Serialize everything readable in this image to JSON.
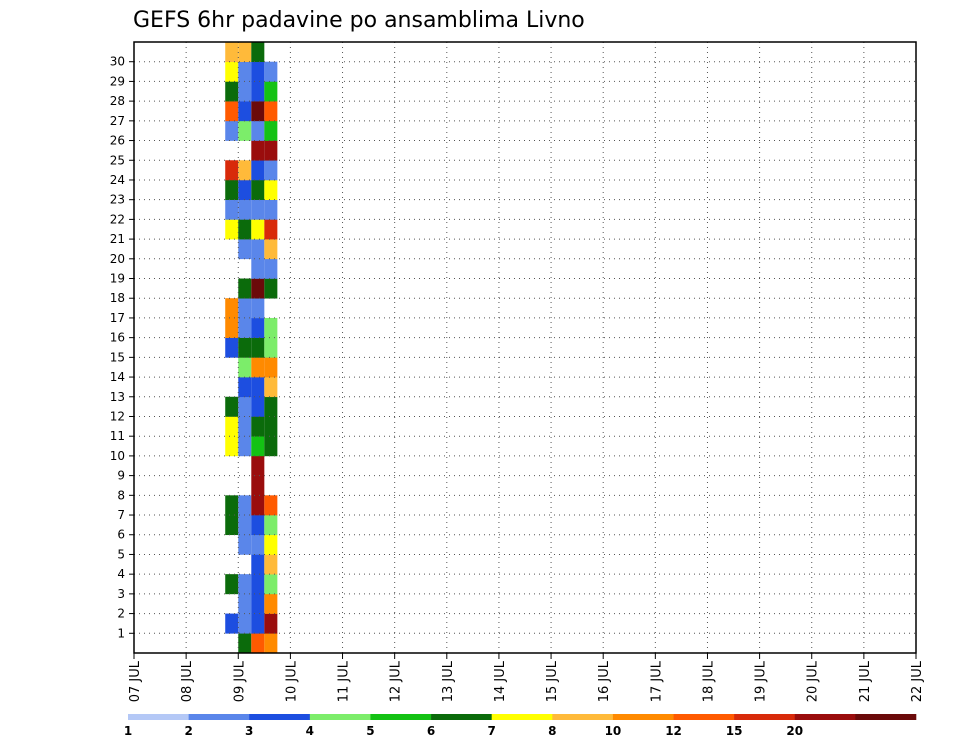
{
  "chart_data": {
    "type": "heatmap",
    "title": "GEFS 6hr padavine po ansamblima Livno",
    "xlabel": "",
    "ylabel": "",
    "x_ticks": [
      "07 JUL",
      "08 JUL",
      "09 JUL",
      "10 JUL",
      "11 JUL",
      "12 JUL",
      "13 JUL",
      "14 JUL",
      "15 JUL",
      "16 JUL",
      "17 JUL",
      "18 JUL",
      "19 JUL",
      "20 JUL",
      "21 JUL",
      "22 JUL"
    ],
    "y_ticks": [
      1,
      2,
      3,
      4,
      5,
      6,
      7,
      8,
      9,
      10,
      11,
      12,
      13,
      14,
      15,
      16,
      17,
      18,
      19,
      20,
      21,
      22,
      23,
      24,
      25,
      26,
      27,
      28,
      29,
      30
    ],
    "grid": "dotted",
    "legend": {
      "position": "bottom",
      "labels": [
        "1",
        "2",
        "3",
        "4",
        "5",
        "6",
        "7",
        "8",
        "10",
        "12",
        "15",
        "20"
      ],
      "colors": [
        "#b4c8f6",
        "#5a86ea",
        "#1d4ee0",
        "#7ced6a",
        "#14c214",
        "#0b6b0b",
        "#ffff00",
        "#ffba3a",
        "#ff8a00",
        "#ff5a00",
        "#d82a0a",
        "#9a0d0d",
        "#6b0a0a"
      ]
    },
    "series": [
      {
        "x": "08 JUL 18z",
        "members": [
          1,
          3,
          6,
          7,
          10,
          11,
          12,
          15,
          16,
          17,
          21,
          22,
          23,
          24,
          26,
          27,
          28,
          29,
          30
        ],
        "levels": [
          2,
          5,
          5,
          5,
          6,
          6,
          5,
          2,
          8,
          8,
          6,
          1,
          5,
          10,
          1,
          9,
          5,
          6,
          7
        ]
      },
      {
        "x": "09 JUL 00z",
        "members": [
          0,
          1,
          2,
          3,
          5,
          6,
          7,
          10,
          11,
          12,
          13,
          14,
          15,
          16,
          17,
          18,
          20,
          21,
          22,
          23,
          24,
          26,
          27,
          28,
          29,
          30
        ],
        "levels": [
          5,
          1,
          1,
          1,
          1,
          1,
          1,
          1,
          1,
          1,
          2,
          3,
          5,
          1,
          1,
          5,
          1,
          5,
          1,
          2,
          7,
          3,
          2,
          1,
          1,
          7
        ]
      },
      {
        "x": "09 JUL 06z",
        "members": [
          0,
          1,
          2,
          3,
          4,
          5,
          6,
          7,
          8,
          9,
          10,
          11,
          12,
          13,
          14,
          15,
          16,
          17,
          18,
          19,
          20,
          21,
          22,
          23,
          24,
          25,
          26,
          27,
          28,
          29,
          30
        ],
        "levels": [
          9,
          2,
          2,
          2,
          2,
          1,
          2,
          11,
          11,
          11,
          4,
          5,
          2,
          2,
          8,
          5,
          2,
          1,
          12,
          1,
          1,
          6,
          1,
          5,
          2,
          11,
          1,
          12,
          2,
          2,
          5
        ]
      },
      {
        "x": "09 JUL 12z",
        "members": [
          0,
          1,
          2,
          3,
          4,
          5,
          6,
          7,
          10,
          11,
          12,
          13,
          14,
          15,
          16,
          18,
          19,
          20,
          21,
          22,
          23,
          24,
          25,
          26,
          27,
          28,
          29
        ],
        "levels": [
          8,
          11,
          8,
          3,
          7,
          6,
          3,
          9,
          5,
          5,
          5,
          7,
          8,
          3,
          3,
          5,
          1,
          7,
          10,
          1,
          6,
          1,
          11,
          4,
          9,
          4,
          1
        ]
      }
    ]
  }
}
